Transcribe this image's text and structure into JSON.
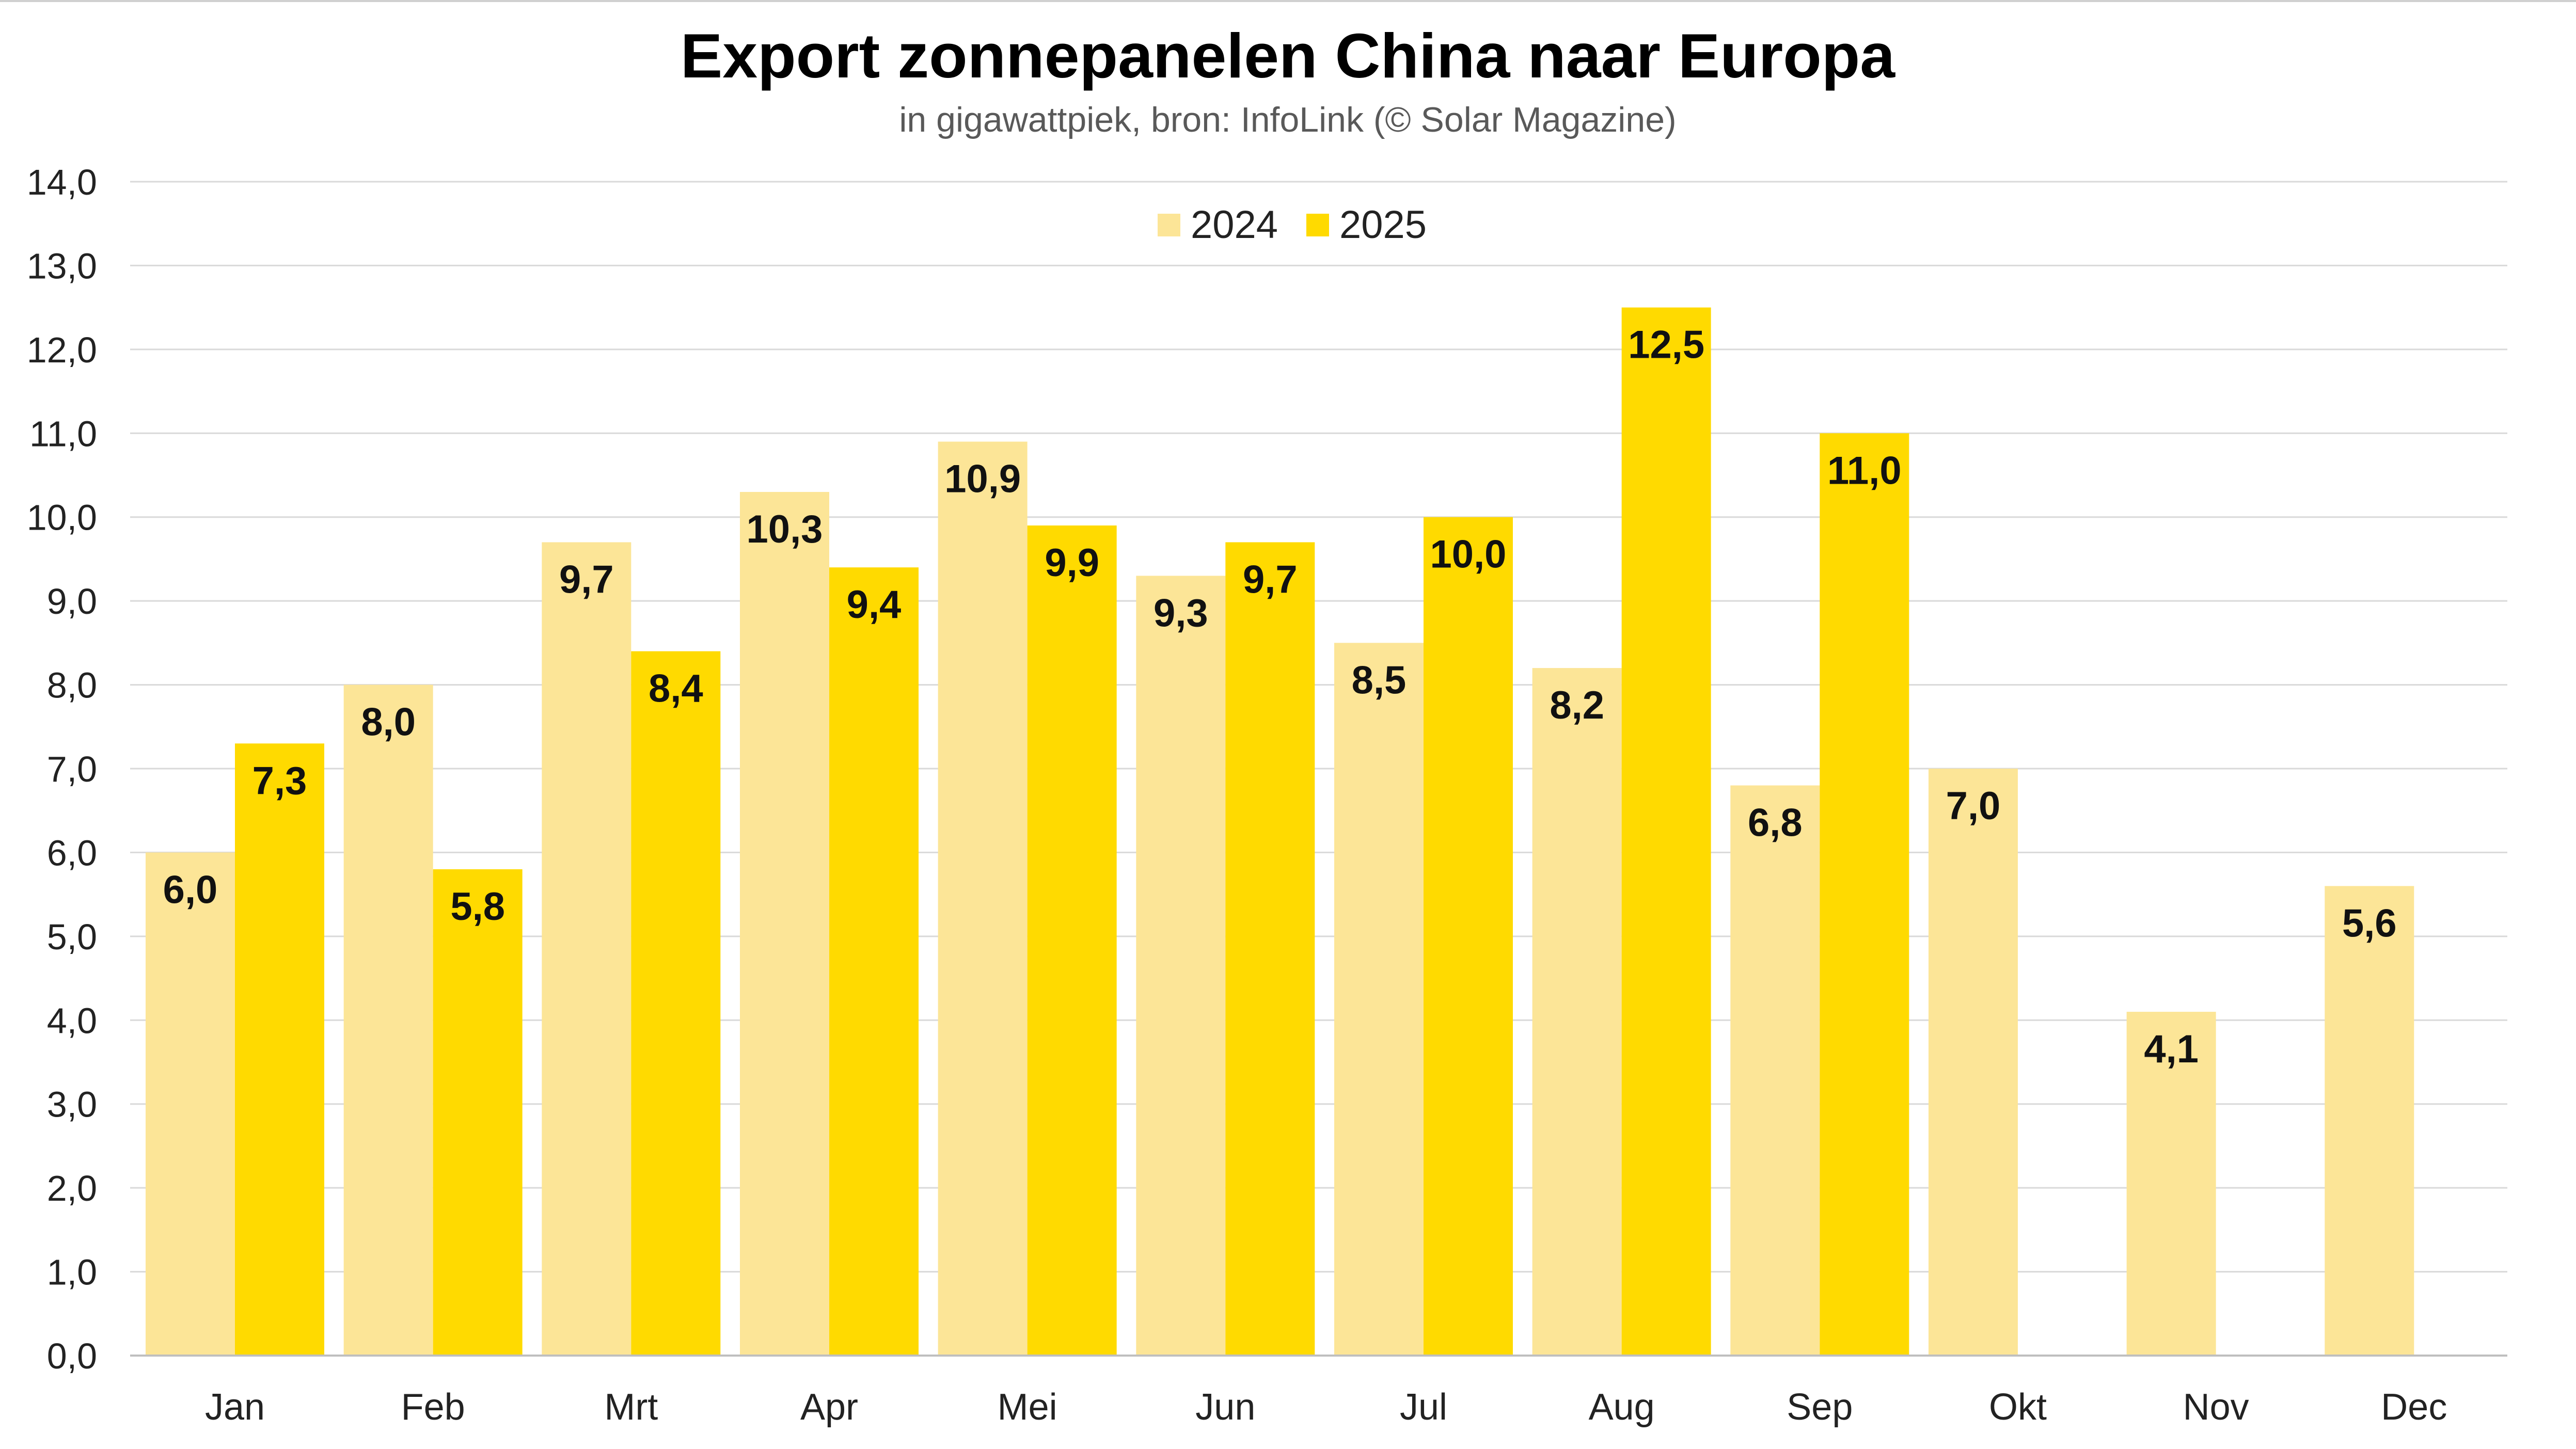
{
  "chart_data": {
    "type": "bar",
    "title": "Export zonnepanelen China naar Europa",
    "subtitle": "in gigawattpiek, bron: InfoLink (© Solar Magazine)",
    "xlabel": "",
    "ylabel": "",
    "ylim": [
      0,
      14
    ],
    "ytick_step": 1,
    "ytick_labels": [
      "0,0",
      "1,0",
      "2,0",
      "3,0",
      "4,0",
      "5,0",
      "6,0",
      "7,0",
      "8,0",
      "9,0",
      "10,0",
      "11,0",
      "12,0",
      "13,0",
      "14,0"
    ],
    "grid": true,
    "legend_position": "top-center",
    "categories": [
      "Jan",
      "Feb",
      "Mrt",
      "Apr",
      "Mei",
      "Jun",
      "Jul",
      "Aug",
      "Sep",
      "Okt",
      "Nov",
      "Dec"
    ],
    "series": [
      {
        "name": "2024",
        "color": "#fce597",
        "values": [
          6.0,
          8.0,
          9.7,
          10.3,
          10.9,
          9.3,
          8.5,
          8.2,
          6.8,
          7.0,
          4.1,
          5.6
        ],
        "labels": [
          "6,0",
          "8,0",
          "9,7",
          "10,3",
          "10,9",
          "9,3",
          "8,5",
          "8,2",
          "6,8",
          "7,0",
          "4,1",
          "5,6"
        ]
      },
      {
        "name": "2025",
        "color": "#ffda00",
        "values": [
          7.3,
          5.8,
          8.4,
          9.4,
          9.9,
          9.7,
          10.0,
          12.5,
          11.0,
          null,
          null,
          null
        ],
        "labels": [
          "7,3",
          "5,8",
          "8,4",
          "9,4",
          "9,9",
          "9,7",
          "10,0",
          "12,5",
          "11,0",
          null,
          null,
          null
        ]
      }
    ]
  }
}
